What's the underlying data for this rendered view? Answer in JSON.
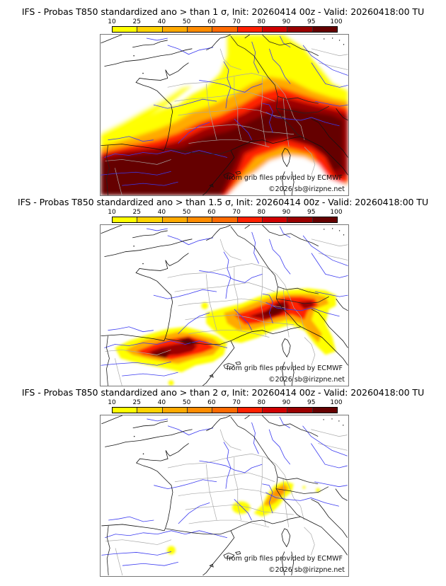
{
  "panels": [
    {
      "title": "IFS - Probas T850  standardized ano > than 1 σ, Init: 20260414 00z - Valid: 20260418:00 TU",
      "threshold_sigma": 1,
      "source_credit": "from grib files provided by ECMWF",
      "copyright": "©2026 sb@irizpne.net"
    },
    {
      "title": "IFS - Probas T850  standardized ano > than 1.5 σ, Init: 20260414 00z - Valid: 20260418:00 TU",
      "threshold_sigma": 1.5,
      "source_credit": "from grib files provided by ECMWF",
      "copyright": "©2026 sb@irizpne.net"
    },
    {
      "title": "IFS - Probas T850  standardized ano > than 2 σ, Init: 20260414 00z - Valid: 20260418:00 TU",
      "threshold_sigma": 2,
      "source_credit": "from grib files provided by ECMWF",
      "copyright": "©2026 sb@irizpne.net"
    }
  ],
  "colorbar": {
    "labels": [
      "10",
      "25",
      "40",
      "50",
      "60",
      "70",
      "80",
      "90",
      "95",
      "100"
    ],
    "colors": [
      "#ffff00",
      "#ffd300",
      "#ffaa00",
      "#ff8c00",
      "#ff6a00",
      "#ff2000",
      "#d00000",
      "#9a0000",
      "#650000"
    ]
  },
  "map_colors": {
    "coastline": "#000000",
    "borders": "#a8a8a8",
    "rivers": "#3a3af0"
  }
}
